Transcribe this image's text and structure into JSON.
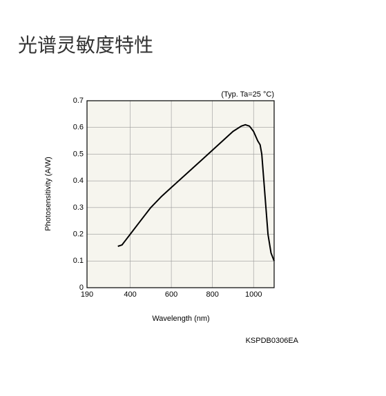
{
  "header": {
    "title": "光谱灵敏度特性"
  },
  "chart_data": {
    "type": "line",
    "annotation": "(Typ. Ta=25 °C)",
    "code": "KSPDB0306EA",
    "xlabel": "Wavelength (nm)",
    "ylabel": "Photosensitivity (A/W)",
    "xlim": [
      190,
      1100
    ],
    "xticks": [
      190,
      400,
      600,
      800,
      1000
    ],
    "ylim": [
      0,
      0.7
    ],
    "yticks": [
      0,
      0.1,
      0.2,
      0.3,
      0.4,
      0.5,
      0.6,
      0.7
    ],
    "grid": true,
    "x": [
      340,
      360,
      380,
      400,
      450,
      500,
      550,
      600,
      650,
      700,
      750,
      800,
      850,
      900,
      940,
      960,
      980,
      1000,
      1020,
      1032,
      1040,
      1050,
      1060,
      1070,
      1085,
      1100
    ],
    "series": [
      {
        "name": "Photosensitivity",
        "color": "#000000",
        "values": [
          0.155,
          0.16,
          0.18,
          0.2,
          0.25,
          0.3,
          0.34,
          0.375,
          0.41,
          0.445,
          0.48,
          0.515,
          0.55,
          0.585,
          0.605,
          0.61,
          0.605,
          0.585,
          0.55,
          0.535,
          0.5,
          0.4,
          0.3,
          0.2,
          0.13,
          0.1
        ]
      }
    ]
  }
}
